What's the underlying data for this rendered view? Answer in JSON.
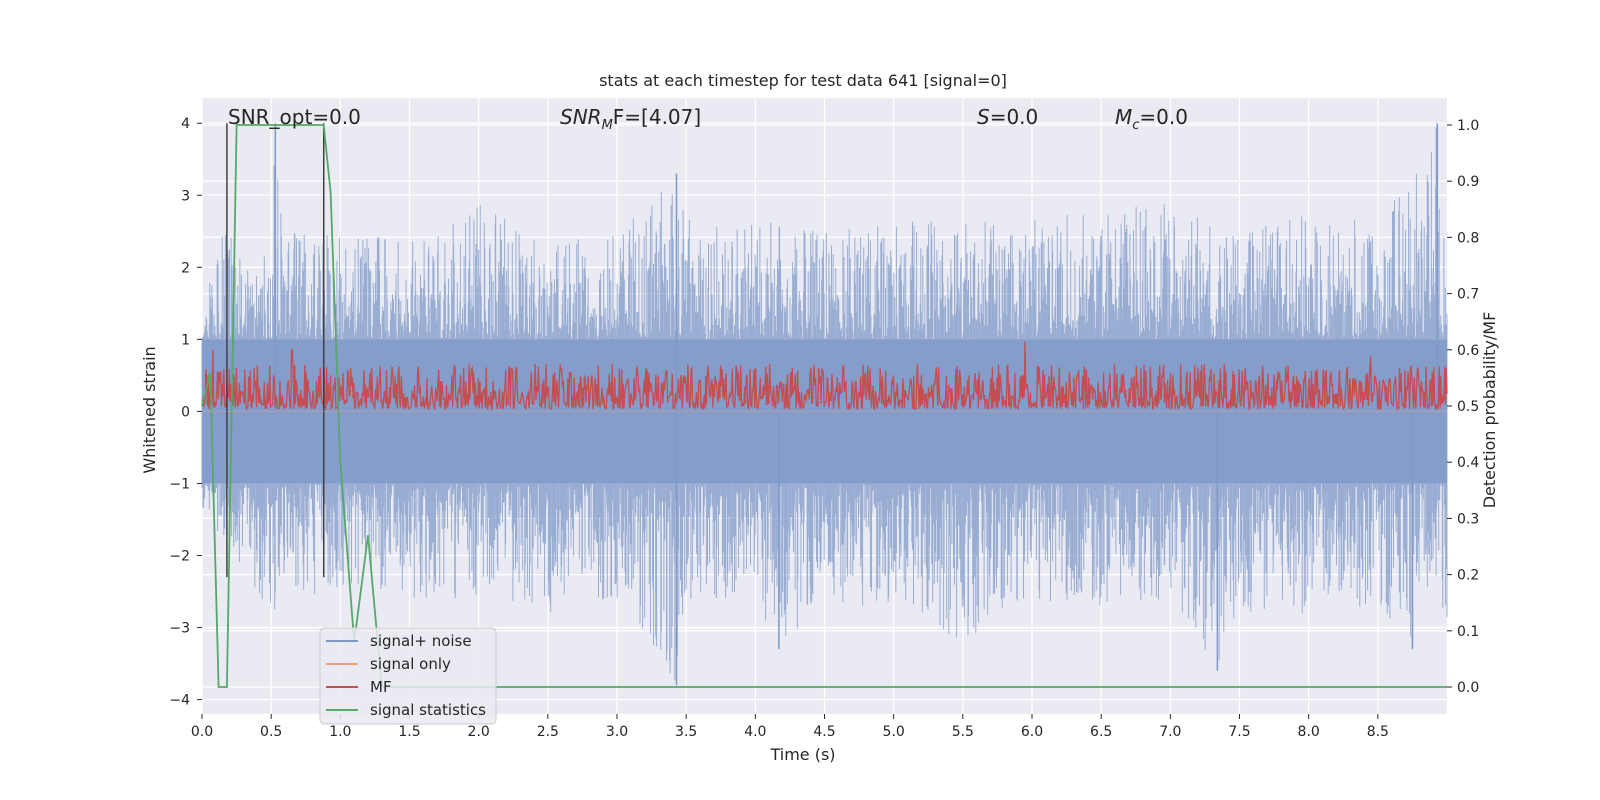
{
  "chart_data": {
    "type": "line",
    "title": "stats at each timestep for test data 641 [signal=0]",
    "xlabel": "Time (s)",
    "ylabel": "Whitened strain",
    "y2label": "Detection probability/MF",
    "xlim": [
      0.0,
      9.0
    ],
    "ylim": [
      -4.2,
      4.35
    ],
    "y2lim": [
      -0.048,
      1.048
    ],
    "xticks": [
      "0.0",
      "0.5",
      "1.0",
      "1.5",
      "2.0",
      "2.5",
      "3.0",
      "3.5",
      "4.0",
      "4.5",
      "5.0",
      "5.5",
      "6.0",
      "6.5",
      "7.0",
      "7.5",
      "8.0",
      "8.5"
    ],
    "xtick_values": [
      0.0,
      0.5,
      1.0,
      1.5,
      2.0,
      2.5,
      3.0,
      3.5,
      4.0,
      4.5,
      5.0,
      5.5,
      6.0,
      6.5,
      7.0,
      7.5,
      8.0,
      8.5
    ],
    "yticks": [
      "−4",
      "−3",
      "−2",
      "−1",
      "0",
      "1",
      "2",
      "3",
      "4"
    ],
    "ytick_values": [
      -4,
      -3,
      -2,
      -1,
      0,
      1,
      2,
      3,
      4
    ],
    "y2ticks": [
      "0.0",
      "0.1",
      "0.2",
      "0.3",
      "0.4",
      "0.5",
      "0.6",
      "0.7",
      "0.8",
      "0.9",
      "1.0"
    ],
    "y2tick_values": [
      0.0,
      0.1,
      0.2,
      0.3,
      0.4,
      0.5,
      0.6,
      0.7,
      0.8,
      0.9,
      1.0
    ],
    "grid": true,
    "legend_placement": "lower-left",
    "annotations": {
      "snr_opt": "SNR_opt=0.0",
      "snr_mf_main": "SNR",
      "snr_mf_sub": "M",
      "snr_mf_rest": "F=[4.07]",
      "s_main": "S",
      "s_rest": "=0.0",
      "mc_main": "M",
      "mc_sub": "c",
      "mc_rest": "=0.0"
    },
    "series": [
      {
        "name": "signal+ noise",
        "color": "#7e98c8",
        "axis": "left",
        "envelope_upper_x": [
          0.0,
          0.1,
          0.2,
          0.3,
          0.4,
          0.5,
          0.53,
          0.6,
          0.8,
          1.0,
          1.5,
          2.0,
          2.5,
          3.0,
          3.43,
          3.5,
          4.0,
          4.5,
          5.0,
          5.5,
          6.0,
          6.5,
          7.0,
          7.5,
          8.0,
          8.5,
          8.93,
          9.0
        ],
        "envelope_upper_y": [
          1.0,
          2.4,
          2.6,
          2.0,
          2.2,
          2.4,
          4.0,
          2.4,
          2.6,
          2.4,
          2.5,
          2.9,
          2.3,
          2.5,
          3.3,
          2.7,
          2.7,
          2.5,
          2.7,
          2.6,
          2.7,
          2.8,
          2.9,
          2.5,
          2.8,
          2.6,
          4.0,
          2.0
        ],
        "envelope_lower_x": [
          0.0,
          0.3,
          0.5,
          0.8,
          1.0,
          1.5,
          2.0,
          2.5,
          3.0,
          3.43,
          3.5,
          4.0,
          4.17,
          4.5,
          5.0,
          5.5,
          5.85,
          6.0,
          6.5,
          7.0,
          7.34,
          7.5,
          8.0,
          8.5,
          8.75,
          9.0
        ],
        "envelope_lower_y": [
          -1.4,
          -2.2,
          -2.9,
          -2.6,
          -2.6,
          -2.6,
          -2.6,
          -2.8,
          -2.6,
          -3.8,
          -2.7,
          -2.6,
          -3.3,
          -2.7,
          -2.7,
          -3.2,
          -2.9,
          -2.7,
          -2.7,
          -2.6,
          -3.6,
          -2.8,
          -2.8,
          -2.7,
          -3.3,
          -2.9
        ],
        "core_band": [
          -1.0,
          1.0
        ]
      },
      {
        "name": "signal only",
        "color": "#e8a07e",
        "axis": "left",
        "x": [
          0.0,
          9.0
        ],
        "y": [
          0.0,
          0.0
        ]
      },
      {
        "name": "MF",
        "color": "#c44e52",
        "axis": "right",
        "x_range": [
          0.0,
          9.0
        ],
        "baseline": 0.5,
        "min": 0.495,
        "max": 0.61,
        "peaks": [
          [
            0.08,
            0.6
          ],
          [
            0.65,
            0.6
          ],
          [
            5.95,
            0.615
          ],
          [
            8.45,
            0.59
          ]
        ]
      },
      {
        "name": "signal statistics",
        "color": "#55a868",
        "axis": "right",
        "x": [
          0.0,
          0.06,
          0.12,
          0.18,
          0.25,
          0.35,
          0.5,
          0.7,
          0.88,
          0.93,
          1.0,
          1.1,
          1.2,
          1.3,
          2.0,
          9.0
        ],
        "y": [
          0.5,
          0.56,
          0.0,
          0.0,
          1.0,
          1.0,
          1.0,
          1.0,
          1.0,
          0.88,
          0.4,
          0.08,
          0.27,
          0.0,
          0.0,
          0.0
        ]
      }
    ],
    "markers": {
      "color": "#404040",
      "x": [
        0.18,
        0.88
      ],
      "y_top": 4.0,
      "y_bottom": -2.3
    }
  },
  "legend": {
    "items": [
      "signal+ noise",
      "signal only",
      "MF",
      "signal statistics"
    ],
    "colors": [
      "#7e98c8",
      "#e8a07e",
      "#c44e52",
      "#55a868"
    ]
  }
}
